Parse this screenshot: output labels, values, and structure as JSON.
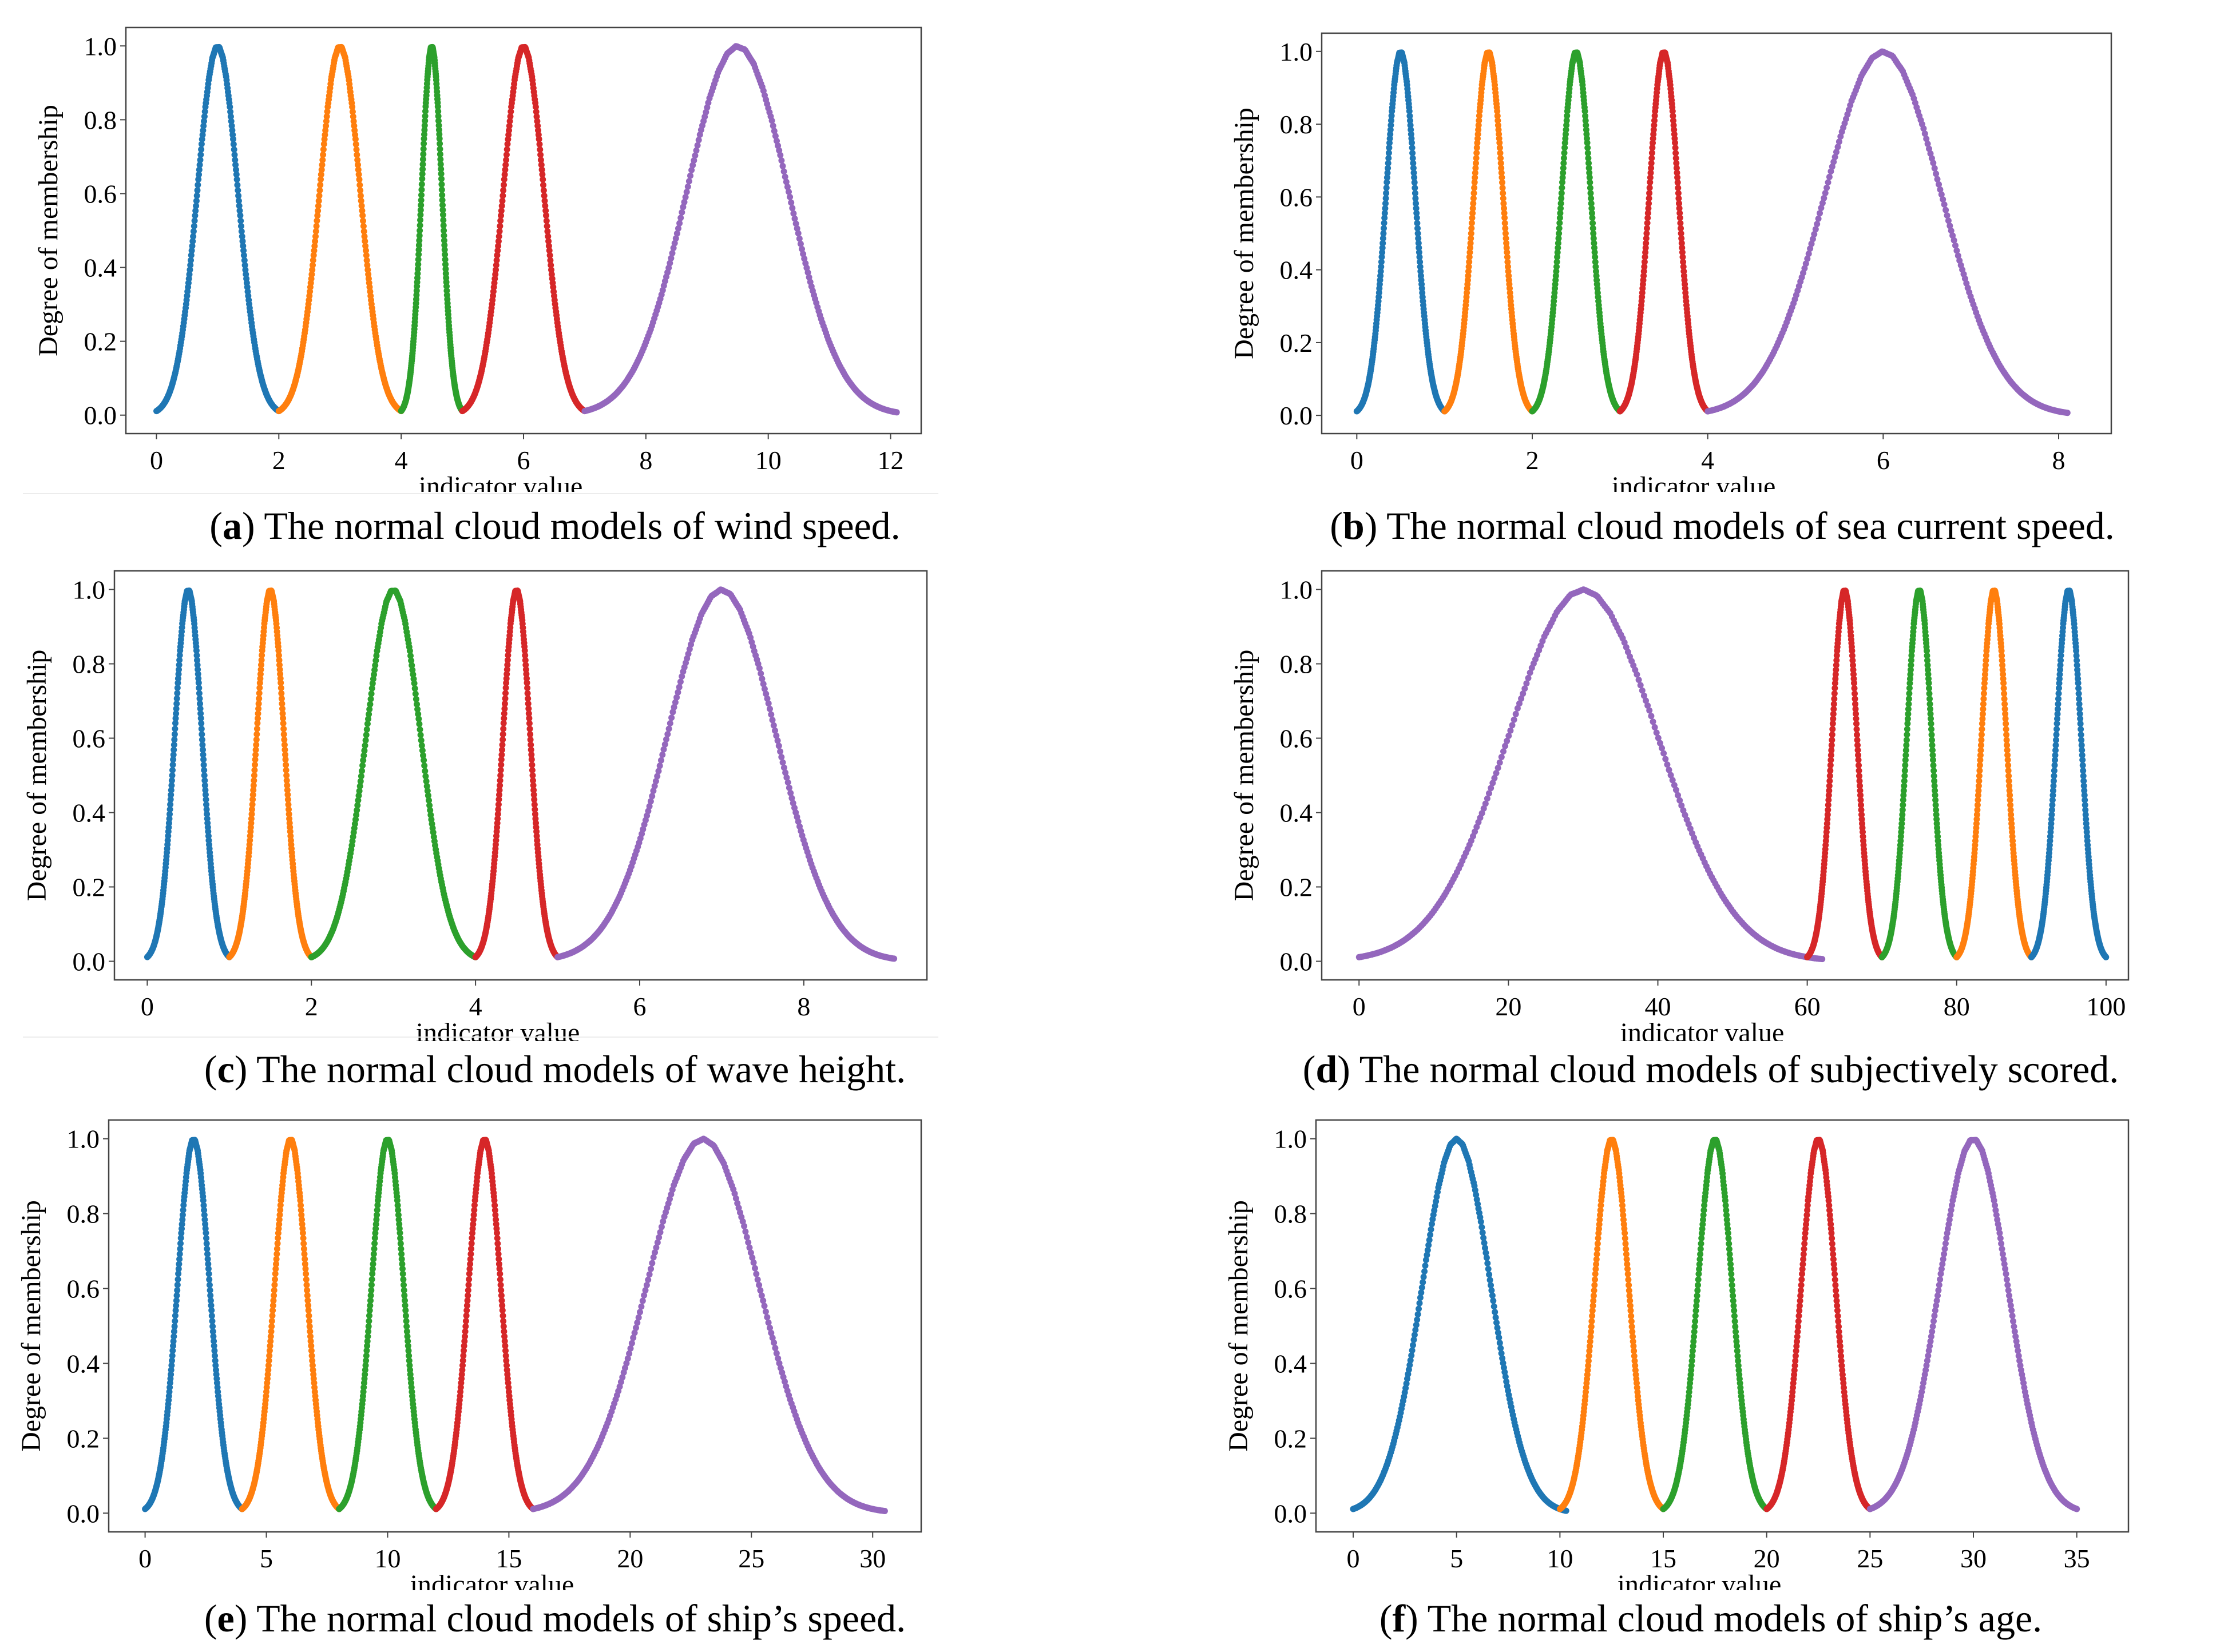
{
  "figure": {
    "colors": {
      "blue": "#1f77b4",
      "orange": "#ff7f0e",
      "green": "#2ca02c",
      "red": "#d62728",
      "purple": "#9467bd"
    },
    "common": {
      "xlabel": "indicator value",
      "ylabel": "Degree of membership"
    }
  },
  "chart_data": [
    {
      "type": "scatter",
      "panel_letter": "a",
      "caption": "The normal cloud models of wind speed.",
      "xlabel": "indicator value",
      "ylabel": "Degree of membership",
      "xlim": [
        -0.5,
        12.5
      ],
      "ylim": [
        -0.05,
        1.05
      ],
      "xticks": [
        0,
        2,
        4,
        6,
        8,
        10,
        12
      ],
      "xtick_labels": [
        "0",
        "2",
        "4",
        "6",
        "8",
        "10",
        "12"
      ],
      "yticks": [
        0,
        0.2,
        0.4,
        0.6,
        0.8,
        1.0
      ],
      "ytick_labels": [
        "0.0",
        "0.2",
        "0.4",
        "0.6",
        "0.8",
        "1.0"
      ],
      "series": [
        {
          "color": "blue",
          "ex": 1.0,
          "en": 0.333,
          "range": [
            0,
            2
          ]
        },
        {
          "color": "orange",
          "ex": 3.0,
          "en": 0.333,
          "range": [
            2,
            4
          ]
        },
        {
          "color": "green",
          "ex": 4.5,
          "en": 0.167,
          "range": [
            4,
            5
          ]
        },
        {
          "color": "red",
          "ex": 6.0,
          "en": 0.333,
          "range": [
            5,
            7
          ]
        },
        {
          "color": "purple",
          "ex": 9.5,
          "en": 0.833,
          "range": [
            7,
            12.1
          ]
        }
      ]
    },
    {
      "type": "scatter",
      "panel_letter": "b",
      "caption": "The normal cloud models of sea current speed.",
      "xlabel": "indicator value",
      "ylabel": "Degree of membership",
      "xlim": [
        -0.4,
        8.6
      ],
      "ylim": [
        -0.05,
        1.05
      ],
      "xticks": [
        0,
        2,
        4,
        6,
        8
      ],
      "xtick_labels": [
        "0",
        "2",
        "4",
        "6",
        "8"
      ],
      "yticks": [
        0,
        0.2,
        0.4,
        0.6,
        0.8,
        1.0
      ],
      "ytick_labels": [
        "0.0",
        "0.2",
        "0.4",
        "0.6",
        "0.8",
        "1.0"
      ],
      "series": [
        {
          "color": "blue",
          "ex": 0.5,
          "en": 0.167,
          "range": [
            0,
            1
          ]
        },
        {
          "color": "orange",
          "ex": 1.5,
          "en": 0.167,
          "range": [
            1,
            2
          ]
        },
        {
          "color": "green",
          "ex": 2.5,
          "en": 0.167,
          "range": [
            2,
            3
          ]
        },
        {
          "color": "red",
          "ex": 3.5,
          "en": 0.167,
          "range": [
            3,
            4
          ]
        },
        {
          "color": "purple",
          "ex": 6.0,
          "en": 0.667,
          "range": [
            4,
            8.1
          ]
        }
      ]
    },
    {
      "type": "scatter",
      "panel_letter": "c",
      "caption": "The normal cloud models of wave height.",
      "xlabel": "indicator value",
      "ylabel": "Degree of membership",
      "xlim": [
        -0.4,
        9.5
      ],
      "ylim": [
        -0.05,
        1.05
      ],
      "xticks": [
        0,
        2,
        4,
        6,
        8
      ],
      "xtick_labels": [
        "0",
        "2",
        "4",
        "6",
        "8"
      ],
      "yticks": [
        0,
        0.2,
        0.4,
        0.6,
        0.8,
        1.0
      ],
      "ytick_labels": [
        "0.0",
        "0.2",
        "0.4",
        "0.6",
        "0.8",
        "1.0"
      ],
      "series": [
        {
          "color": "blue",
          "ex": 0.5,
          "en": 0.167,
          "range": [
            0,
            1
          ]
        },
        {
          "color": "orange",
          "ex": 1.5,
          "en": 0.167,
          "range": [
            1,
            2
          ]
        },
        {
          "color": "green",
          "ex": 3.0,
          "en": 0.333,
          "range": [
            2,
            4
          ]
        },
        {
          "color": "red",
          "ex": 4.5,
          "en": 0.167,
          "range": [
            4,
            5
          ]
        },
        {
          "color": "purple",
          "ex": 7.0,
          "en": 0.667,
          "range": [
            5,
            9.1
          ]
        }
      ]
    },
    {
      "type": "scatter",
      "panel_letter": "d",
      "caption": "The normal cloud models of subjectively scored.",
      "xlabel": "indicator value",
      "ylabel": "Degree of membership",
      "xlim": [
        -5,
        103
      ],
      "ylim": [
        -0.05,
        1.05
      ],
      "xticks": [
        0,
        20,
        40,
        60,
        80,
        100
      ],
      "xtick_labels": [
        "0",
        "20",
        "40",
        "60",
        "80",
        "100"
      ],
      "yticks": [
        0,
        0.2,
        0.4,
        0.6,
        0.8,
        1.0
      ],
      "ytick_labels": [
        "0.0",
        "0.2",
        "0.4",
        "0.6",
        "0.8",
        "1.0"
      ],
      "series": [
        {
          "color": "purple",
          "ex": 30,
          "en": 10,
          "range": [
            0,
            62
          ]
        },
        {
          "color": "red",
          "ex": 65,
          "en": 1.667,
          "range": [
            60,
            70
          ]
        },
        {
          "color": "green",
          "ex": 75,
          "en": 1.667,
          "range": [
            70,
            80
          ]
        },
        {
          "color": "orange",
          "ex": 85,
          "en": 1.667,
          "range": [
            80,
            90
          ]
        },
        {
          "color": "blue",
          "ex": 95,
          "en": 1.667,
          "range": [
            90,
            100
          ]
        }
      ]
    },
    {
      "type": "scatter",
      "panel_letter": "e",
      "caption": "The normal cloud models of ship’s speed.",
      "xlabel": "indicator value",
      "ylabel": "Degree of membership",
      "xlim": [
        -1.5,
        32
      ],
      "ylim": [
        -0.05,
        1.05
      ],
      "xticks": [
        0,
        5,
        10,
        15,
        20,
        25,
        30
      ],
      "xtick_labels": [
        "0",
        "5",
        "10",
        "15",
        "20",
        "25",
        "30"
      ],
      "yticks": [
        0,
        0.2,
        0.4,
        0.6,
        0.8,
        1.0
      ],
      "ytick_labels": [
        "0.0",
        "0.2",
        "0.4",
        "0.6",
        "0.8",
        "1.0"
      ],
      "series": [
        {
          "color": "blue",
          "ex": 2,
          "en": 0.667,
          "range": [
            0,
            4
          ]
        },
        {
          "color": "orange",
          "ex": 6,
          "en": 0.667,
          "range": [
            4,
            8
          ]
        },
        {
          "color": "green",
          "ex": 10,
          "en": 0.667,
          "range": [
            8,
            12
          ]
        },
        {
          "color": "red",
          "ex": 14,
          "en": 0.667,
          "range": [
            12,
            16
          ]
        },
        {
          "color": "purple",
          "ex": 23,
          "en": 2.333,
          "range": [
            16,
            30.5
          ]
        }
      ]
    },
    {
      "type": "scatter",
      "panel_letter": "f",
      "caption": "The normal cloud models of ship’s age.",
      "xlabel": "indicator value",
      "ylabel": "Degree of membership",
      "xlim": [
        -1.8,
        37.5
      ],
      "ylim": [
        -0.05,
        1.05
      ],
      "xticks": [
        0,
        5,
        10,
        15,
        20,
        25,
        30,
        35
      ],
      "xtick_labels": [
        "0",
        "5",
        "10",
        "15",
        "20",
        "25",
        "30",
        "35"
      ],
      "yticks": [
        0,
        0.2,
        0.4,
        0.6,
        0.8,
        1.0
      ],
      "ytick_labels": [
        "0.0",
        "0.2",
        "0.4",
        "0.6",
        "0.8",
        "1.0"
      ],
      "series": [
        {
          "color": "blue",
          "ex": 5,
          "en": 1.667,
          "range": [
            0,
            10.3
          ]
        },
        {
          "color": "orange",
          "ex": 12.5,
          "en": 0.833,
          "range": [
            10,
            15
          ]
        },
        {
          "color": "green",
          "ex": 17.5,
          "en": 0.833,
          "range": [
            15,
            20
          ]
        },
        {
          "color": "red",
          "ex": 22.5,
          "en": 0.833,
          "range": [
            20,
            25
          ]
        },
        {
          "color": "purple",
          "ex": 30,
          "en": 1.667,
          "range": [
            25,
            35
          ]
        }
      ]
    }
  ]
}
